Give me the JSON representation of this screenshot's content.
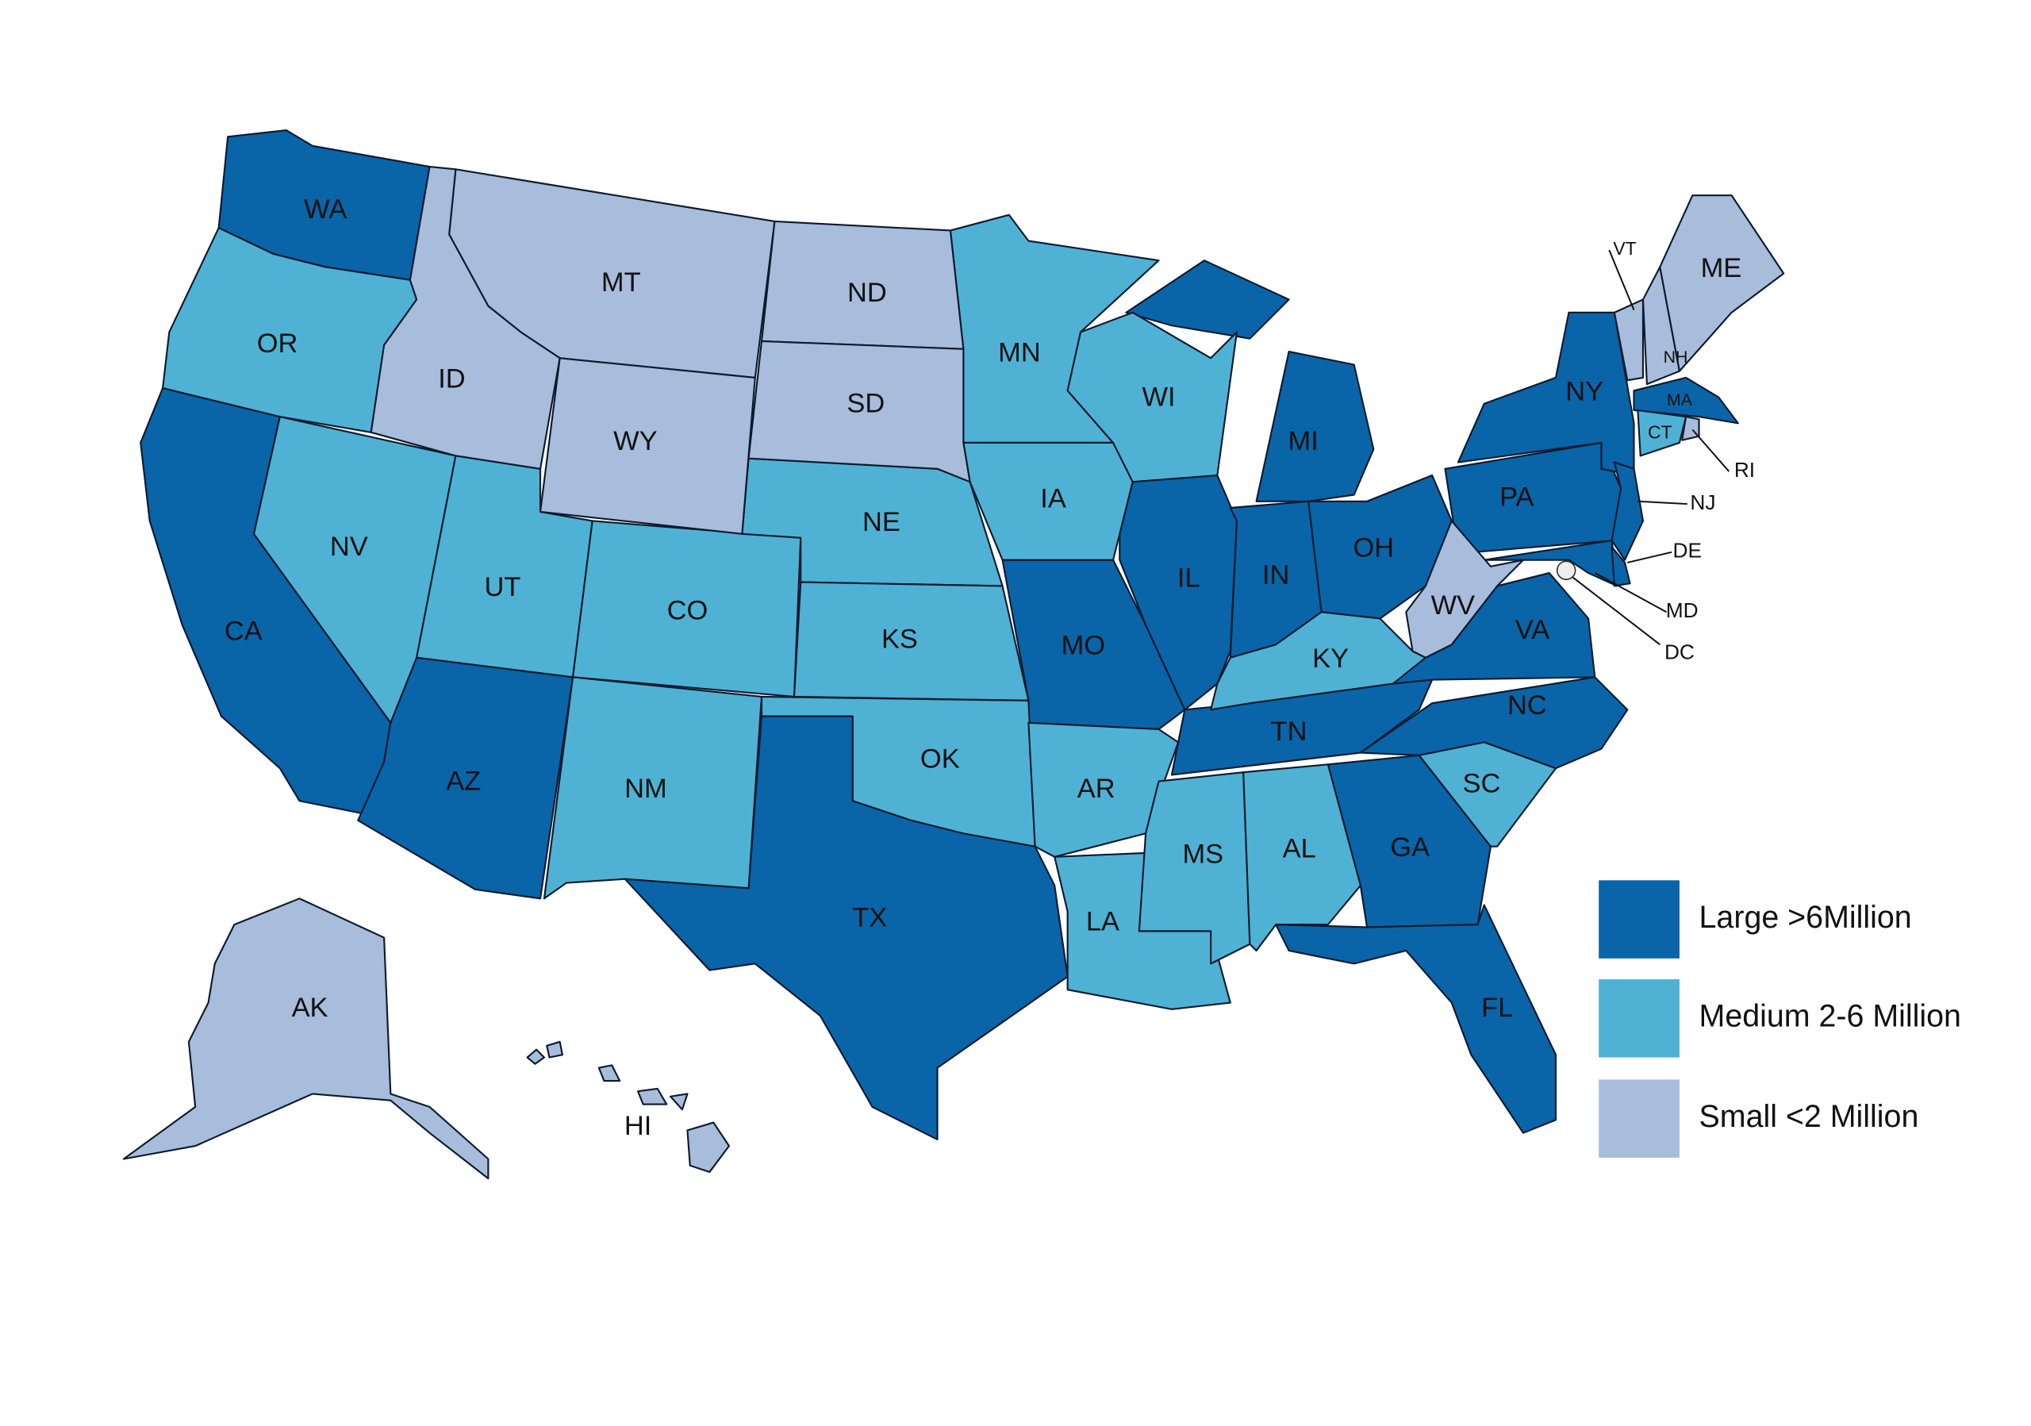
{
  "legend": {
    "items": [
      {
        "label": "Large >6Million",
        "color": "#0a64a8",
        "states": [
          "WA",
          "CA",
          "AZ",
          "TX",
          "MO",
          "IL",
          "MI",
          "IN",
          "OH",
          "TN",
          "GA",
          "FL",
          "NC",
          "VA",
          "PA",
          "NY",
          "NJ",
          "MD",
          "DE",
          "MA"
        ]
      },
      {
        "label": "Medium 2-6 Million",
        "color": "#4fb2d4",
        "states": [
          "OR",
          "NV",
          "UT",
          "CO",
          "NM",
          "NE",
          "KS",
          "OK",
          "MN",
          "IA",
          "WI",
          "AR",
          "LA",
          "MS",
          "AL",
          "KY",
          "SC",
          "CT"
        ]
      },
      {
        "label": "Small <2 Million",
        "color": "#a8bcdc",
        "states": [
          "MT",
          "ID",
          "WY",
          "ND",
          "SD",
          "AK",
          "HI",
          "WV",
          "VT",
          "NH",
          "ME",
          "RI"
        ]
      }
    ]
  },
  "dc_label": "DC"
}
